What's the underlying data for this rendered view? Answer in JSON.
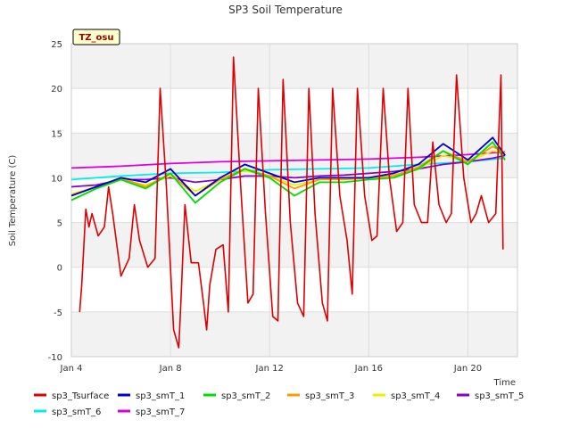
{
  "chart_data": {
    "type": "line",
    "title": "SP3 Soil Temperature",
    "ylabel": "Soil Temperature (C)",
    "xlabel": "Time",
    "badge": "TZ_osu",
    "ylim": [
      -10,
      25
    ],
    "yticks": [
      -10,
      -5,
      0,
      5,
      10,
      15,
      20,
      25
    ],
    "xlim": [
      "2024-01-04",
      "2024-01-22"
    ],
    "xticks": [
      {
        "value": "2024-01-04",
        "label": "Jan 4"
      },
      {
        "value": "2024-01-08",
        "label": "Jan 8"
      },
      {
        "value": "2024-01-12",
        "label": "Jan 12"
      },
      {
        "value": "2024-01-16",
        "label": "Jan 16"
      },
      {
        "value": "2024-01-20",
        "label": "Jan 20"
      }
    ],
    "grid": true,
    "legend_placement": "bottom",
    "series": [
      {
        "name": "sp3_Tsurface",
        "color": "#dd0000",
        "x": [
          "2024-01-04T08:00",
          "2024-01-04T10:00",
          "2024-01-04T14:00",
          "2024-01-04T17:00",
          "2024-01-04T20:00",
          "2024-01-05T02:00",
          "2024-01-05T08:00",
          "2024-01-05T12:00",
          "2024-01-05T16:00",
          "2024-01-06T00:00",
          "2024-01-06T08:00",
          "2024-01-06T13:00",
          "2024-01-06T18:00",
          "2024-01-07T02:00",
          "2024-01-07T09:00",
          "2024-01-07T14:00",
          "2024-01-07T20:00",
          "2024-01-08T03:00",
          "2024-01-08T08:00",
          "2024-01-08T10:00",
          "2024-01-08T14:00",
          "2024-01-08T20:00",
          "2024-01-09T03:00",
          "2024-01-09T08:00",
          "2024-01-09T11:00",
          "2024-01-09T14:00",
          "2024-01-09T20:00",
          "2024-01-10T03:00",
          "2024-01-10T08:00",
          "2024-01-10T13:00",
          "2024-01-10T20:00",
          "2024-01-11T03:00",
          "2024-01-11T08:00",
          "2024-01-11T13:00",
          "2024-01-11T20:00",
          "2024-01-12T03:00",
          "2024-01-12T08:00",
          "2024-01-12T13:00",
          "2024-01-12T20:00",
          "2024-01-13T03:00",
          "2024-01-13T09:00",
          "2024-01-13T14:00",
          "2024-01-13T20:00",
          "2024-01-14T03:00",
          "2024-01-14T08:00",
          "2024-01-14T13:00",
          "2024-01-14T20:00",
          "2024-01-15T03:00",
          "2024-01-15T08:00",
          "2024-01-15T13:00",
          "2024-01-15T20:00",
          "2024-01-16T03:00",
          "2024-01-16T08:00",
          "2024-01-16T14:00",
          "2024-01-16T20:00",
          "2024-01-17T03:00",
          "2024-01-17T09:00",
          "2024-01-17T14:00",
          "2024-01-17T20:00",
          "2024-01-18T03:00",
          "2024-01-18T09:00",
          "2024-01-18T14:00",
          "2024-01-18T20:00",
          "2024-01-19T03:00",
          "2024-01-19T08:00",
          "2024-01-19T13:00",
          "2024-01-19T20:00",
          "2024-01-20T03:00",
          "2024-01-20T08:00",
          "2024-01-20T13:00",
          "2024-01-20T20:00",
          "2024-01-21T03:00",
          "2024-01-21T08:00",
          "2024-01-21T10:00"
        ],
        "y": [
          -5,
          -2,
          6.5,
          4.5,
          6,
          3.5,
          4.5,
          9,
          6,
          -1,
          1,
          7,
          3,
          0,
          1,
          20,
          9,
          -7,
          -9,
          -4,
          7,
          0.5,
          0.5,
          -4,
          -7,
          -2,
          2,
          2.5,
          -5,
          23.5,
          9,
          -4,
          -3,
          20,
          6,
          -5.5,
          -6,
          21,
          5,
          -4,
          -5.5,
          20,
          6,
          -4,
          -6,
          20,
          8,
          3,
          -3,
          20,
          8,
          3,
          3.5,
          20,
          10,
          4,
          5,
          20,
          7,
          5,
          5,
          14,
          7,
          5,
          6,
          21.5,
          10,
          5,
          6,
          8,
          5,
          6,
          21.5,
          2
        ]
      },
      {
        "name": "sp3_smT_1",
        "color": "#0000cc",
        "x": [
          "2024-01-04",
          "2024-01-05",
          "2024-01-06",
          "2024-01-07",
          "2024-01-08",
          "2024-01-09",
          "2024-01-10",
          "2024-01-11",
          "2024-01-12",
          "2024-01-13",
          "2024-01-14",
          "2024-01-15",
          "2024-01-16",
          "2024-01-17",
          "2024-01-18",
          "2024-01-19",
          "2024-01-20",
          "2024-01-21",
          "2024-01-21T12:00"
        ],
        "y": [
          8,
          9,
          10,
          9.5,
          11,
          8,
          10,
          11.5,
          10.5,
          9.5,
          10,
          10,
          10,
          10.5,
          11.5,
          13.8,
          12,
          14.5,
          12.5
        ]
      },
      {
        "name": "sp3_smT_2",
        "color": "#00dd00",
        "x": [
          "2024-01-04",
          "2024-01-05",
          "2024-01-06",
          "2024-01-07",
          "2024-01-08",
          "2024-01-09",
          "2024-01-10",
          "2024-01-11",
          "2024-01-12",
          "2024-01-13",
          "2024-01-14",
          "2024-01-15",
          "2024-01-16",
          "2024-01-17",
          "2024-01-18",
          "2024-01-19",
          "2024-01-20",
          "2024-01-21",
          "2024-01-21T12:00"
        ],
        "y": [
          7.5,
          8.8,
          9.8,
          8.8,
          10.5,
          7.2,
          9.5,
          11,
          10,
          8,
          9.5,
          9.5,
          9.8,
          10,
          11,
          13,
          11.5,
          14,
          12
        ]
      },
      {
        "name": "sp3_smT_3",
        "color": "#ff9900",
        "x": [
          "2024-01-04",
          "2024-01-05",
          "2024-01-06",
          "2024-01-07",
          "2024-01-08",
          "2024-01-09",
          "2024-01-10",
          "2024-01-11",
          "2024-01-12",
          "2024-01-13",
          "2024-01-14",
          "2024-01-15",
          "2024-01-16",
          "2024-01-17",
          "2024-01-18",
          "2024-01-19",
          "2024-01-20",
          "2024-01-21",
          "2024-01-21T12:00"
        ],
        "y": [
          8,
          9,
          10,
          9,
          10.5,
          8,
          9.8,
          11,
          10.2,
          8.8,
          9.8,
          9.8,
          10,
          10.2,
          11.2,
          13,
          11.8,
          13.5,
          12.8
        ]
      },
      {
        "name": "sp3_smT_4",
        "color": "#eeee00",
        "x": [
          "2024-01-04",
          "2024-01-05",
          "2024-01-06",
          "2024-01-07",
          "2024-01-08",
          "2024-01-09",
          "2024-01-10",
          "2024-01-11",
          "2024-01-12",
          "2024-01-13",
          "2024-01-14",
          "2024-01-15",
          "2024-01-16",
          "2024-01-17",
          "2024-01-18",
          "2024-01-19",
          "2024-01-20",
          "2024-01-21",
          "2024-01-21T12:00"
        ],
        "y": [
          8.2,
          9,
          9.8,
          9.2,
          10.2,
          8.5,
          9.8,
          10.8,
          10.2,
          9.2,
          9.8,
          10,
          10,
          10.3,
          11,
          12.5,
          11.8,
          13,
          12.8
        ]
      },
      {
        "name": "sp3_smT_5",
        "color": "#8800cc",
        "x": [
          "2024-01-04",
          "2024-01-05",
          "2024-01-06",
          "2024-01-07",
          "2024-01-08",
          "2024-01-09",
          "2024-01-10",
          "2024-01-11",
          "2024-01-12",
          "2024-01-13",
          "2024-01-14",
          "2024-01-15",
          "2024-01-16",
          "2024-01-17",
          "2024-01-18",
          "2024-01-19",
          "2024-01-20",
          "2024-01-21",
          "2024-01-21T12:00"
        ],
        "y": [
          9,
          9.2,
          9.8,
          9.8,
          10,
          9.5,
          9.8,
          10.2,
          10.2,
          10,
          10.2,
          10.3,
          10.5,
          10.7,
          11,
          11.5,
          11.8,
          12.2,
          12.5
        ]
      },
      {
        "name": "sp3_smT_6",
        "color": "#00eeee",
        "x": [
          "2024-01-04",
          "2024-01-06",
          "2024-01-08",
          "2024-01-10",
          "2024-01-12",
          "2024-01-14",
          "2024-01-16",
          "2024-01-18",
          "2024-01-20",
          "2024-01-21T12:00"
        ],
        "y": [
          9.8,
          10.2,
          10.5,
          10.6,
          10.9,
          11,
          11.1,
          11.5,
          11.8,
          12.2
        ]
      },
      {
        "name": "sp3_smT_7",
        "color": "#dd00dd",
        "x": [
          "2024-01-04",
          "2024-01-06",
          "2024-01-08",
          "2024-01-10",
          "2024-01-12",
          "2024-01-14",
          "2024-01-16",
          "2024-01-18",
          "2024-01-20",
          "2024-01-21T12:00"
        ],
        "y": [
          11.1,
          11.3,
          11.6,
          11.8,
          11.9,
          12,
          12.1,
          12.3,
          12.6,
          12.9
        ]
      }
    ]
  }
}
